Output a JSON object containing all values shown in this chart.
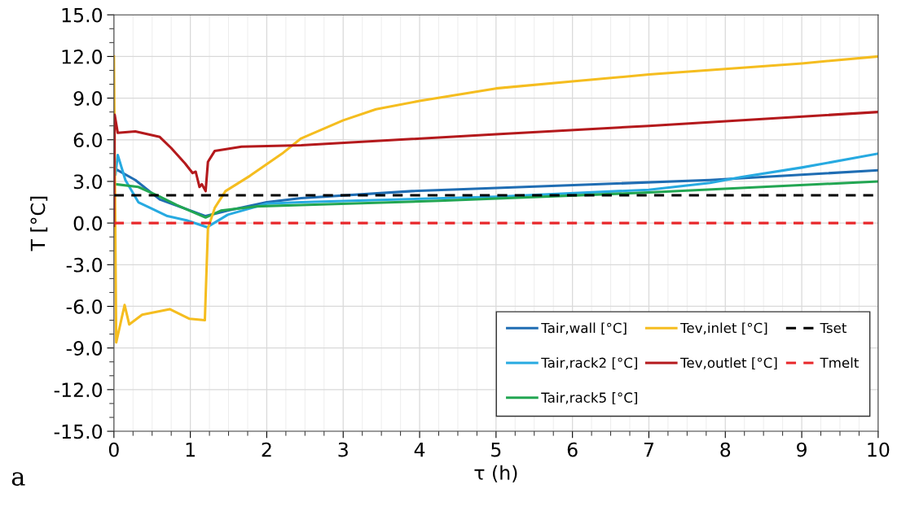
{
  "chart_data": {
    "type": "line",
    "xlabel": "τ (h)",
    "ylabel": "T [°C]",
    "xlim": [
      0,
      10
    ],
    "xticks": [
      0,
      1,
      2,
      3,
      4,
      5,
      6,
      7,
      8,
      9,
      10
    ],
    "ylim": [
      -15,
      15
    ],
    "yticks": [
      {
        "value": -15,
        "label": "-15.0"
      },
      {
        "value": -12,
        "label": "-12.0"
      },
      {
        "value": -9,
        "label": "-9.0"
      },
      {
        "value": -6,
        "label": "-6.0"
      },
      {
        "value": -3,
        "label": "-3.0"
      },
      {
        "value": 0,
        "label": "0.0"
      },
      {
        "value": 3,
        "label": "3.0"
      },
      {
        "value": 6,
        "label": "6.0"
      },
      {
        "value": 9,
        "label": "9.0"
      },
      {
        "value": 12,
        "label": "12.0"
      },
      {
        "value": 15,
        "label": "15.0"
      }
    ],
    "grid": true,
    "legend": "bottom right",
    "marker": "none",
    "annotations": [
      "a"
    ],
    "series": [
      {
        "name": "Tair,wall [°C]",
        "color": "#1f6db3",
        "line_style": "solid",
        "x": [
          0.02,
          0.28,
          0.6,
          1.2,
          1.49,
          2.0,
          2.45,
          3.9,
          5.87,
          7.8,
          10
        ],
        "values": [
          3.9,
          3.1,
          1.7,
          0.5,
          0.9,
          1.5,
          1.8,
          2.3,
          2.7,
          3.1,
          3.8
        ]
      },
      {
        "name": "Tair,rack2 [°C]",
        "color": "#27aae1",
        "line_style": "solid",
        "x": [
          0.02,
          0.05,
          0.15,
          0.32,
          0.7,
          0.95,
          1.22,
          1.49,
          2.0,
          2.45,
          5.0,
          7.0,
          7.8,
          8.2,
          9.0,
          10
        ],
        "values": [
          3.5,
          4.9,
          3.1,
          1.5,
          0.5,
          0.2,
          -0.3,
          0.6,
          1.4,
          1.5,
          1.9,
          2.4,
          2.9,
          3.3,
          4.0,
          5.0
        ]
      },
      {
        "name": "Tair,rack5 [°C]",
        "color": "#22a652",
        "line_style": "solid",
        "x": [
          0.02,
          0.32,
          0.6,
          0.82,
          1.2,
          1.4,
          1.86,
          2.45,
          4.26,
          7.0,
          10
        ],
        "values": [
          2.8,
          2.6,
          1.9,
          1.3,
          0.4,
          0.9,
          1.2,
          1.3,
          1.6,
          2.2,
          3.0
        ]
      },
      {
        "name": "Tev,inlet [°C]",
        "color": "#f5bd1f",
        "line_style": "solid",
        "x": [
          0.0,
          0.03,
          0.14,
          0.2,
          0.37,
          0.73,
          0.99,
          1.19,
          1.23,
          1.32,
          1.46,
          1.78,
          2.2,
          2.45,
          3.0,
          3.43,
          4.0,
          5.0,
          6.0,
          7.0,
          8.0,
          9.0,
          10
        ],
        "values": [
          12.0,
          -8.6,
          -5.9,
          -7.3,
          -6.6,
          -6.2,
          -6.9,
          -7.0,
          -0.4,
          1.1,
          2.3,
          3.4,
          5.0,
          6.1,
          7.4,
          8.2,
          8.8,
          9.7,
          10.2,
          10.7,
          11.1,
          11.5,
          12.0
        ]
      },
      {
        "name": "Tev,outlet [°C]",
        "color": "#b4191c",
        "line_style": "solid",
        "x": [
          0.0,
          0.01,
          0.05,
          0.28,
          0.6,
          0.75,
          0.93,
          1.03,
          1.07,
          1.12,
          1.15,
          1.2,
          1.23,
          1.32,
          1.67,
          2.45,
          5.0,
          7.0,
          10
        ],
        "values": [
          -0.2,
          7.8,
          6.5,
          6.6,
          6.2,
          5.4,
          4.3,
          3.6,
          3.7,
          2.6,
          2.8,
          2.3,
          4.4,
          5.2,
          5.5,
          5.6,
          6.4,
          7.0,
          8.0
        ]
      },
      {
        "name": "Tset",
        "color": "#000000",
        "line_style": "dashed",
        "x": [
          0,
          10
        ],
        "values": [
          2.0,
          2.0
        ]
      },
      {
        "name": "Tmelt",
        "color": "#e8272a",
        "line_style": "dashed",
        "x": [
          0,
          10
        ],
        "values": [
          0.0,
          0.0
        ]
      }
    ]
  }
}
